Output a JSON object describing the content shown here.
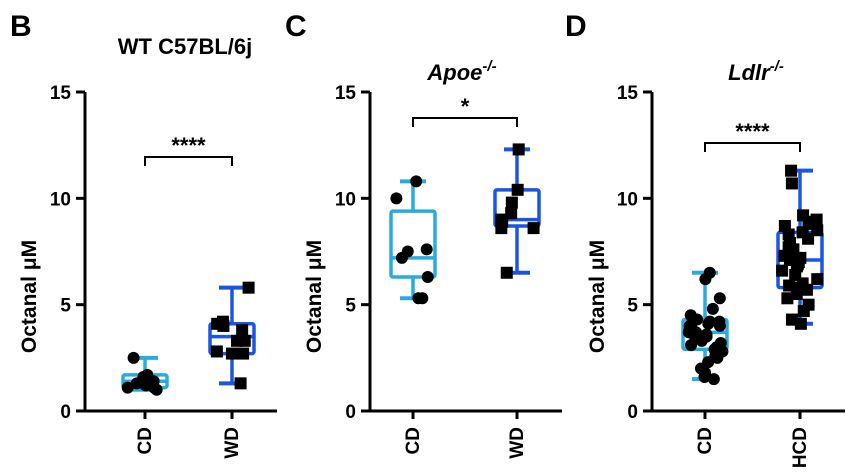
{
  "chart_data": [
    {
      "type": "box",
      "panel_letter": "B",
      "title": "WT C57BL/6j",
      "title_italic": false,
      "ylabel": "Octanal μM",
      "ylim": [
        0,
        15
      ],
      "yticks": [
        "0",
        "5",
        "10",
        "15"
      ],
      "significance": "****",
      "series": [
        {
          "name": "CD",
          "color": "#29abe2",
          "marker": "circle",
          "min": 1.0,
          "q1": 1.1,
          "median": 1.4,
          "q3": 1.7,
          "max": 2.5,
          "values": [
            2.5,
            1.4,
            1.7,
            1.6,
            1.3,
            1.0,
            1.1,
            1.3,
            1.5,
            1.2,
            1.1
          ]
        },
        {
          "name": "WD",
          "color": "#1a55e3",
          "marker": "square",
          "min": 1.3,
          "q1": 2.7,
          "median": 3.5,
          "q3": 4.1,
          "max": 5.8,
          "values": [
            5.8,
            4.2,
            4.0,
            3.8,
            3.3,
            3.3,
            2.8,
            2.7,
            2.7,
            1.3,
            4.1
          ]
        }
      ]
    },
    {
      "type": "box",
      "panel_letter": "C",
      "title": "Apoe",
      "title_sup": "-/-",
      "title_italic": true,
      "ylabel": "Octanal μM",
      "ylim": [
        0,
        15
      ],
      "yticks": [
        "0",
        "5",
        "10",
        "15"
      ],
      "significance": "*",
      "series": [
        {
          "name": "CD",
          "color": "#29abe2",
          "marker": "circle",
          "min": 5.3,
          "q1": 6.3,
          "median": 7.2,
          "q3": 9.4,
          "max": 10.8,
          "values": [
            10.8,
            10.0,
            7.5,
            7.6,
            7.2,
            6.3,
            5.3,
            5.3
          ]
        },
        {
          "name": "WD",
          "color": "#1a55e3",
          "marker": "square",
          "min": 6.5,
          "q1": 8.7,
          "median": 9.0,
          "q3": 10.4,
          "max": 12.3,
          "values": [
            12.3,
            10.4,
            9.8,
            9.3,
            9.0,
            8.9,
            8.6,
            8.6,
            6.5
          ]
        }
      ]
    },
    {
      "type": "box",
      "panel_letter": "D",
      "title": "Ldlr",
      "title_sup": "-/-",
      "title_italic": true,
      "ylabel": "Octanal μM",
      "ylim": [
        0,
        15
      ],
      "yticks": [
        "0",
        "5",
        "10",
        "15"
      ],
      "significance": "****",
      "series": [
        {
          "name": "CD",
          "color": "#29abe2",
          "marker": "circle",
          "min": 1.5,
          "q1": 2.9,
          "median": 3.7,
          "q3": 4.3,
          "max": 6.5,
          "values": [
            6.5,
            6.2,
            5.3,
            4.8,
            4.5,
            4.3,
            4.2,
            4.2,
            4.0,
            4.0,
            3.9,
            3.8,
            3.7,
            3.7,
            3.6,
            3.5,
            3.4,
            3.3,
            3.2,
            3.1,
            3.0,
            2.9,
            2.8,
            2.6,
            2.5,
            2.3,
            2.0,
            1.8,
            1.6,
            1.5,
            3.5,
            4.1
          ]
        },
        {
          "name": "HCD",
          "color": "#1a55e3",
          "marker": "square",
          "min": 4.1,
          "q1": 5.8,
          "median": 7.1,
          "q3": 8.4,
          "max": 11.3,
          "values": [
            11.3,
            10.7,
            9.2,
            9.0,
            8.9,
            8.8,
            8.7,
            8.5,
            8.4,
            8.3,
            8.1,
            7.9,
            7.7,
            7.5,
            7.3,
            7.2,
            7.1,
            7.0,
            6.8,
            6.6,
            6.4,
            6.2,
            6.0,
            5.9,
            5.8,
            5.7,
            5.5,
            5.3,
            5.0,
            4.7,
            4.3,
            4.1,
            7.6,
            6.9
          ]
        }
      ]
    }
  ]
}
